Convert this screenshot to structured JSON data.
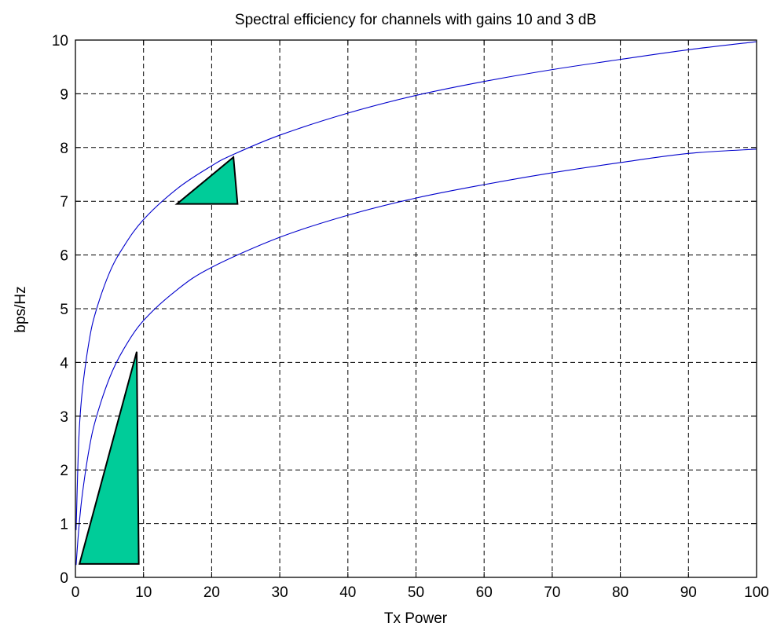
{
  "chart_data": {
    "type": "line",
    "title": "Spectral efficiency for channels with gains 10 and 3 dB",
    "xlabel": "Tx Power",
    "ylabel": "bps/Hz",
    "xlim": [
      0,
      100
    ],
    "ylim": [
      0,
      10
    ],
    "xticks": [
      "0",
      "10",
      "20",
      "30",
      "40",
      "50",
      "60",
      "70",
      "80",
      "90",
      "100"
    ],
    "yticks": [
      "0",
      "1",
      "2",
      "3",
      "4",
      "5",
      "6",
      "7",
      "8",
      "9",
      "10"
    ],
    "grid": true,
    "grid_style": "dashed",
    "series": [
      {
        "color": "#0000cc",
        "x": [
          0.1,
          0.5,
          1,
          2,
          3,
          5,
          7,
          10,
          15,
          20,
          23,
          30,
          40,
          50,
          60,
          70,
          80,
          90,
          100
        ],
        "values": [
          0.88,
          2.58,
          3.46,
          4.39,
          4.95,
          5.67,
          6.14,
          6.66,
          7.24,
          7.66,
          7.86,
          8.23,
          8.64,
          8.97,
          9.23,
          9.45,
          9.64,
          9.82,
          9.97
        ]
      },
      {
        "color": "#0000cc",
        "x": [
          0.1,
          0.5,
          1,
          2,
          3,
          5,
          7,
          10,
          15,
          20,
          30,
          40,
          50,
          60,
          70,
          80,
          90,
          100
        ],
        "values": [
          0.23,
          0.91,
          1.53,
          2.38,
          2.95,
          3.71,
          4.23,
          4.78,
          5.36,
          5.77,
          6.33,
          6.74,
          7.06,
          7.31,
          7.53,
          7.72,
          7.89,
          7.97
        ]
      }
    ],
    "annotations": [
      {
        "kind": "triangle",
        "fill": "#00cc99",
        "points": [
          [
            0.6,
            0.25
          ],
          [
            9.3,
            0.25
          ],
          [
            9.0,
            4.2
          ]
        ]
      },
      {
        "kind": "triangle",
        "fill": "#00cc99",
        "points": [
          [
            14.9,
            6.95
          ],
          [
            23.8,
            6.95
          ],
          [
            23.2,
            7.82
          ]
        ]
      }
    ]
  }
}
